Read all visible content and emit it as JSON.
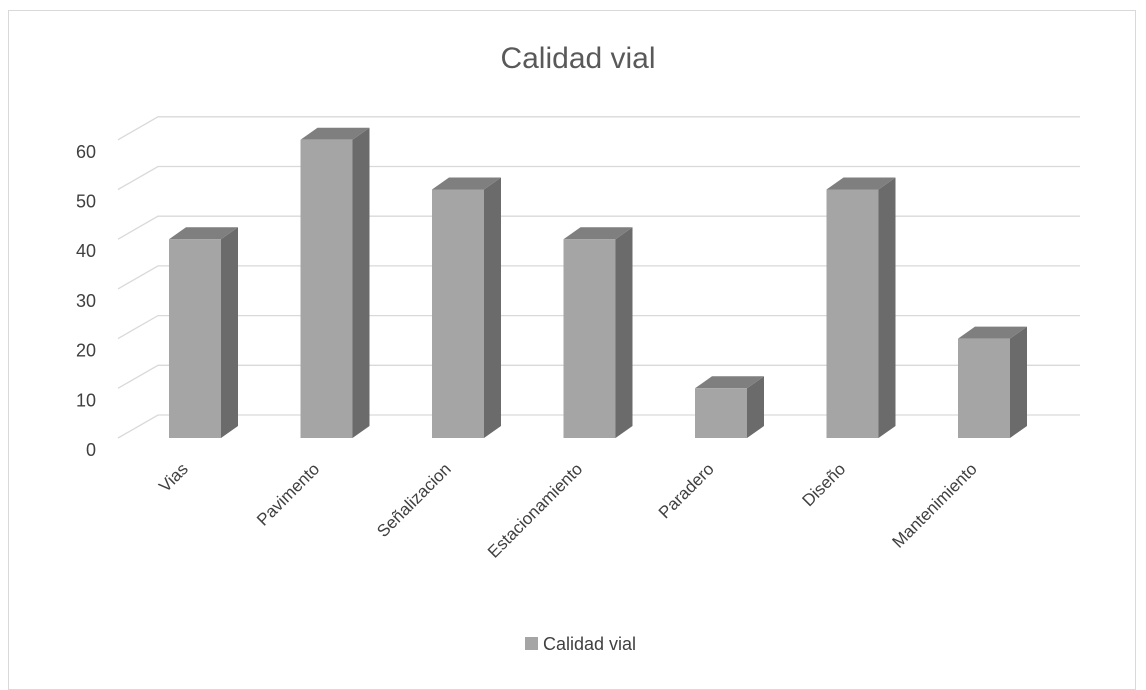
{
  "chart_data": {
    "type": "bar",
    "title": "Calidad vial",
    "categories": [
      "Vias",
      "Pavimento",
      "Señalizacion",
      "Estacionamiento",
      "Paradero",
      "Diseño",
      "Mantenimiento"
    ],
    "series": [
      {
        "name": "Calidad vial",
        "values": [
          40,
          60,
          50,
          40,
          10,
          50,
          20
        ]
      }
    ],
    "ylim": [
      0,
      60
    ],
    "yticks": [
      0,
      10,
      20,
      30,
      40,
      50,
      60
    ],
    "grid": true,
    "legend_position": "bottom",
    "style": "3d-column",
    "colors": {
      "front": "#a5a5a5",
      "side": "#6b6b6b",
      "top": "#7f7f7f",
      "grid": "#d9d9d9"
    }
  }
}
